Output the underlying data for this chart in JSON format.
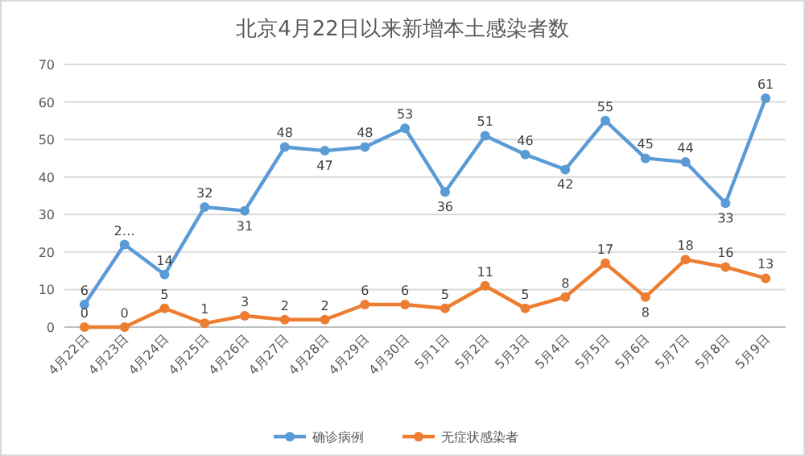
{
  "chart_data": {
    "type": "line",
    "title": "北京4月22日以来新增本土感染者数",
    "categories": [
      "4月22日",
      "4月23日",
      "4月24日",
      "4月25日",
      "4月26日",
      "4月27日",
      "4月28日",
      "4月29日",
      "4月30日",
      "5月1日",
      "5月2日",
      "5月3日",
      "5月4日",
      "5月5日",
      "5月6日",
      "5月7日",
      "5月8日",
      "5月9日"
    ],
    "series": [
      {
        "name": "确诊病例",
        "color": "#5b9bd5",
        "values": [
          6,
          22,
          14,
          32,
          31,
          48,
          47,
          48,
          53,
          36,
          51,
          46,
          42,
          55,
          45,
          44,
          33,
          61
        ],
        "value_labels": [
          "6",
          "2…",
          "14",
          "32",
          "31",
          "48",
          "47",
          "48",
          "53",
          "36",
          "51",
          "46",
          "42",
          "55",
          "45",
          "44",
          "33",
          "61"
        ]
      },
      {
        "name": "无症状感染者",
        "color": "#ed7d31",
        "values": [
          0,
          0,
          5,
          1,
          3,
          2,
          2,
          6,
          6,
          5,
          11,
          5,
          8,
          17,
          8,
          18,
          16,
          13
        ],
        "value_labels": [
          "0",
          "0",
          "5",
          "1",
          "3",
          "2",
          "2",
          "6",
          "6",
          "5",
          "11",
          "5",
          "8",
          "17",
          "8",
          "18",
          "16",
          "13"
        ]
      }
    ],
    "ylim": [
      0,
      70
    ],
    "yticks": [
      0,
      10,
      20,
      30,
      40,
      50,
      60,
      70
    ],
    "grid": "y",
    "legend": "bottom",
    "marker": "circle",
    "line_style": "solid"
  }
}
